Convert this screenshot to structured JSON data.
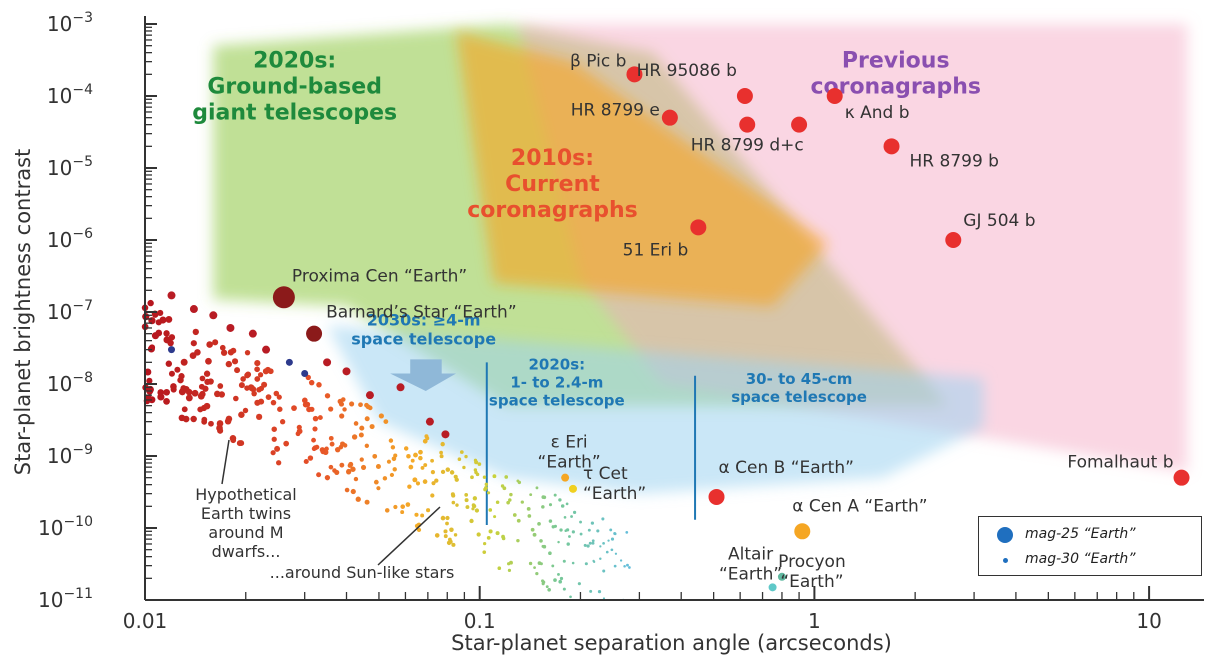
{
  "chart_data": {
    "type": "scatter",
    "title": "",
    "xlabel": "Star-planet separation angle (arcseconds)",
    "ylabel": "Star-planet brightness contrast",
    "xscale": "log",
    "yscale": "log",
    "xlim": [
      0.01,
      14
    ],
    "ylim": [
      1e-11,
      0.001
    ],
    "x_ticks": [
      {
        "value": 0.01,
        "label": "0.01"
      },
      {
        "value": 0.1,
        "label": "0.1"
      },
      {
        "value": 1,
        "label": "1"
      },
      {
        "value": 10,
        "label": "10"
      }
    ],
    "y_ticks": [
      {
        "value": 0.001,
        "base": "10",
        "exp": "−3"
      },
      {
        "value": 0.0001,
        "base": "10",
        "exp": "−4"
      },
      {
        "value": 1e-05,
        "base": "10",
        "exp": "−5"
      },
      {
        "value": 1e-06,
        "base": "10",
        "exp": "−6"
      },
      {
        "value": 1e-07,
        "base": "10",
        "exp": "−7"
      },
      {
        "value": 1e-08,
        "base": "10",
        "exp": "−8"
      },
      {
        "value": 1e-09,
        "base": "10",
        "exp": "−9"
      },
      {
        "value": 1e-10,
        "base": "10",
        "exp": "−10"
      },
      {
        "value": 1e-11,
        "base": "10",
        "exp": "−11"
      }
    ],
    "regions": [
      {
        "title_lines": [
          "2020s:",
          "Ground-based",
          "giant telescopes"
        ],
        "color": "#8cc640"
      },
      {
        "title_lines": [
          "2010s:",
          "Current",
          "coronagraphs"
        ],
        "color": "#f7a41d"
      },
      {
        "title_lines": [
          "Previous",
          "coronagraphs"
        ],
        "color": "#f4a3c0"
      },
      {
        "title_lines": [
          "2030s: ≥4-m",
          "space telescope"
        ],
        "color": "#9fd3f0"
      },
      {
        "title_lines": [
          "2020s:",
          "1- to 2.4-m",
          "space telescope"
        ],
        "color": "#9fd3f0"
      },
      {
        "title_lines": [
          "30- to 45-cm",
          "space telescope"
        ],
        "color": "#9fd3f0"
      }
    ],
    "labeled_points": [
      {
        "label": "β Pic b",
        "x": 0.29,
        "y": 0.0002,
        "color": "#e8302e",
        "size": "mag-25"
      },
      {
        "label": "HR 95086 b",
        "x": 0.62,
        "y": 0.0001,
        "color": "#e8302e",
        "size": "mag-25"
      },
      {
        "label": "κ And b",
        "x": 1.15,
        "y": 0.0001,
        "color": "#e8302e",
        "size": "mag-25"
      },
      {
        "label": "HR 8799 e",
        "x": 0.37,
        "y": 5e-05,
        "color": "#e8302e",
        "size": "mag-25"
      },
      {
        "label": "HR 8799 d+c",
        "x": 0.63,
        "y": 4e-05,
        "color": "#e8302e",
        "size": "mag-25"
      },
      {
        "label": "",
        "x": 0.9,
        "y": 4e-05,
        "color": "#e8302e",
        "size": "mag-25"
      },
      {
        "label": "HR 8799 b",
        "x": 1.7,
        "y": 2e-05,
        "color": "#e8302e",
        "size": "mag-25"
      },
      {
        "label": "51 Eri b",
        "x": 0.45,
        "y": 1.5e-06,
        "color": "#e8302e",
        "size": "mag-25"
      },
      {
        "label": "GJ 504 b",
        "x": 2.6,
        "y": 1e-06,
        "color": "#e8302e",
        "size": "mag-25"
      },
      {
        "label": "Fomalhaut b",
        "x": 12.5,
        "y": 5e-10,
        "color": "#e8302e",
        "size": "mag-25"
      },
      {
        "label": "Proxima Cen “Earth”",
        "x": 0.026,
        "y": 1.6e-07,
        "color": "#8b1a1a",
        "size": "large"
      },
      {
        "label": "Barnard’s Star “Earth”",
        "x": 0.032,
        "y": 5e-08,
        "color": "#8b1a1a",
        "size": "mag-25"
      },
      {
        "label": "α Cen B “Earth”",
        "x": 0.51,
        "y": 2.7e-10,
        "color": "#e8302e",
        "size": "mag-25"
      },
      {
        "label": "α Cen A “Earth”",
        "x": 0.92,
        "y": 9e-11,
        "color": "#f5a623",
        "size": "mag-25"
      },
      {
        "label": "ε Eri “Earth”",
        "x": 0.18,
        "y": 5e-10,
        "color": "#f5a623",
        "size": "mag-30"
      },
      {
        "label": "τ Cet “Earth”",
        "x": 0.19,
        "y": 3.5e-10,
        "color": "#f0d020",
        "size": "mag-30"
      },
      {
        "label": "Altair “Earth”",
        "x": 0.75,
        "y": 1.5e-11,
        "color": "#5fc8c8",
        "size": "mag-30"
      },
      {
        "label": "Procyon “Earth”",
        "x": 0.8,
        "y": 2.1e-11,
        "color": "#5fb8a0",
        "size": "mag-30"
      }
    ],
    "annotations": [
      "Hypothetical Earth twins around M dwarfs...",
      "...around Sun-like stars"
    ],
    "legend": {
      "placement": "bottom-right",
      "entries": [
        {
          "label": "mag-25 “Earth”",
          "color": "#1f6fbf",
          "size": "large"
        },
        {
          "label": "mag-30 “Earth”",
          "color": "#1f6fbf",
          "size": "small"
        }
      ]
    },
    "colors": {
      "axis": "#333333",
      "ground_region": "#8cc640",
      "current_coronagraph_region": "#f7a41d",
      "previous_coronagraph_region": "#f4a3c0",
      "space_region": "#9fd3f0",
      "ground_title": "#1e8a3c",
      "current_title": "#e8502e",
      "previous_title": "#8a4fb0",
      "space_title": "#1f78b4"
    }
  }
}
